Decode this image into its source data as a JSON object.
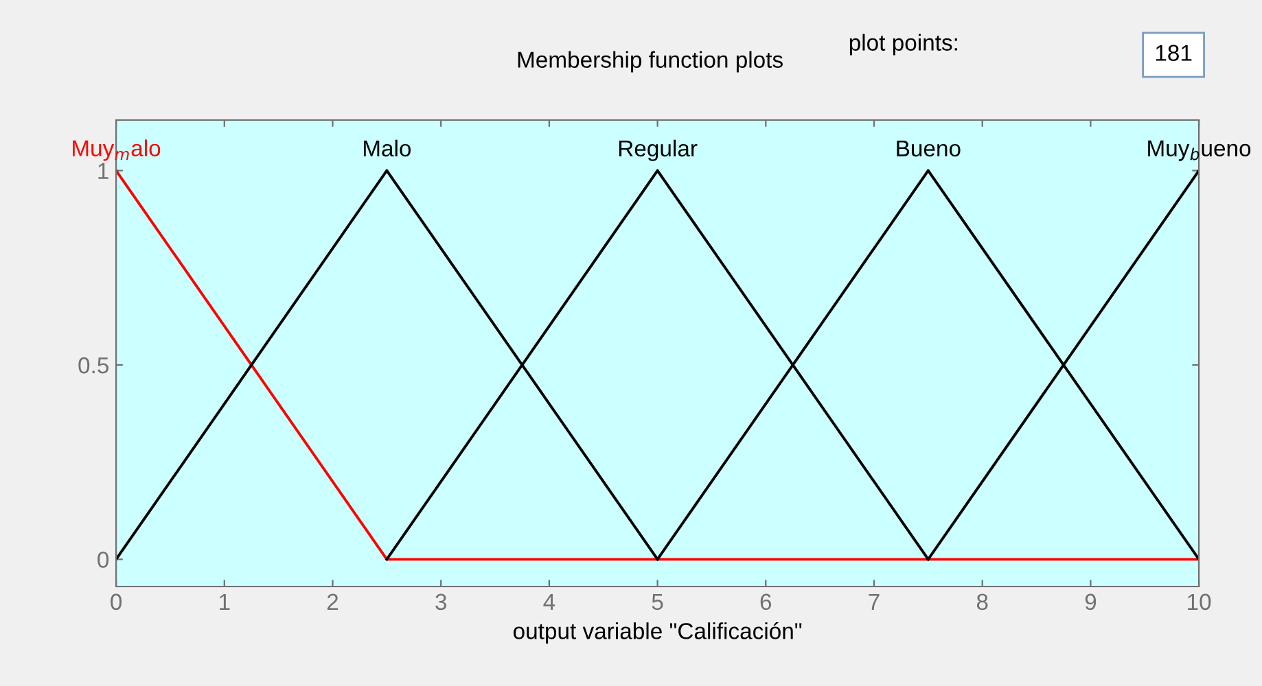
{
  "chart_data": {
    "type": "line",
    "xlabel": "output variable \"Calificación\"",
    "xlim": [
      0,
      10
    ],
    "xticks": [
      0,
      1,
      2,
      3,
      4,
      5,
      6,
      7,
      8,
      9,
      10
    ],
    "ylim": [
      -0.07,
      1.13
    ],
    "yticks": [
      0,
      0.5,
      1
    ],
    "grid": false,
    "legend": false,
    "series": [
      {
        "name": "Muy$_{m}$alo",
        "color": "#ff0000",
        "x": [
          0,
          2.5,
          10
        ],
        "values": [
          1,
          0,
          0
        ]
      },
      {
        "name": "Malo",
        "color": "#000000",
        "x": [
          0,
          2.5,
          5
        ],
        "values": [
          0,
          1,
          0
        ]
      },
      {
        "name": "Regular",
        "color": "#000000",
        "x": [
          2.5,
          5,
          7.5
        ],
        "values": [
          0,
          1,
          0
        ]
      },
      {
        "name": "Bueno",
        "color": "#000000",
        "x": [
          5,
          7.5,
          10
        ],
        "values": [
          0,
          1,
          0
        ]
      },
      {
        "name": "Muy$_{b}$ueno",
        "color": "#000000",
        "x": [
          7.5,
          10
        ],
        "values": [
          0,
          1
        ]
      }
    ],
    "annotations": [
      "Membership function plots",
      "plot points:",
      "181"
    ]
  }
}
